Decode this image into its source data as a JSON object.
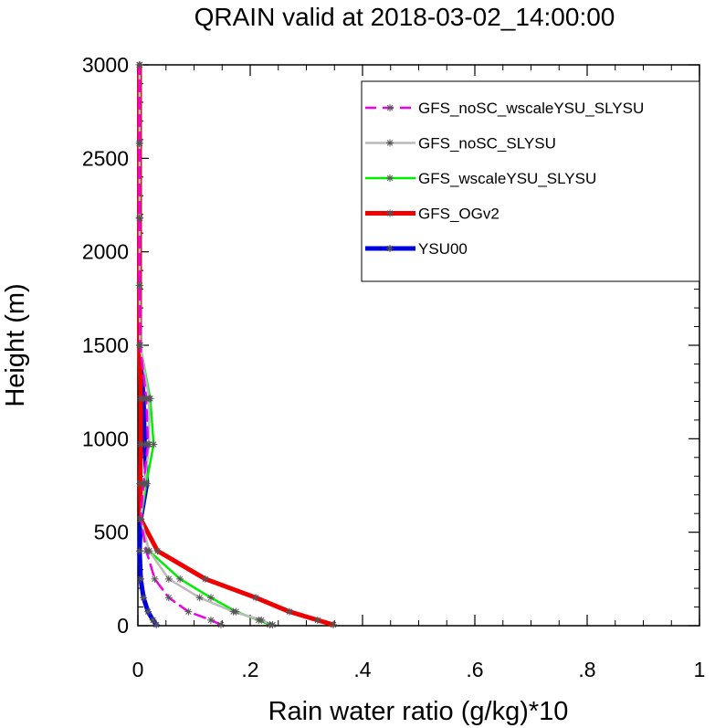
{
  "chart_data": {
    "type": "line",
    "title": "QRAIN valid at 2018-03-02_14:00:00",
    "xlabel": "Rain water ratio (g/kg)*10",
    "ylabel": "Height (m)",
    "xlim": [
      0,
      1
    ],
    "ylim": [
      0,
      3000
    ],
    "x_ticks": [
      0,
      0.2,
      0.4,
      0.6,
      0.8,
      1
    ],
    "x_tick_labels": [
      "0",
      ".2",
      ".4",
      ".6",
      ".8",
      "1"
    ],
    "y_ticks": [
      0,
      500,
      1000,
      1500,
      2000,
      2500,
      3000
    ],
    "y_tick_labels": [
      "0",
      "500",
      "1000",
      "1500",
      "2000",
      "2500",
      "3000"
    ],
    "legend_position": "top-right",
    "grid": false,
    "series": [
      {
        "name": "GFS_noSC_wscaleYSU_SLYSU",
        "color": "#ee00ee",
        "style": "dashed",
        "points": [
          [
            0.148,
            5
          ],
          [
            0.13,
            30
          ],
          [
            0.09,
            75
          ],
          [
            0.055,
            150
          ],
          [
            0.03,
            250
          ],
          [
            0.015,
            400
          ],
          [
            0.005,
            570
          ],
          [
            0.01,
            760
          ],
          [
            0.018,
            970
          ],
          [
            0.015,
            1215
          ],
          [
            0.004,
            1500
          ],
          [
            0.003,
            1820
          ],
          [
            0.003,
            2180
          ],
          [
            0.003,
            2580
          ],
          [
            0.003,
            3000
          ]
        ]
      },
      {
        "name": "GFS_noSC_SLYSU",
        "color": "#bbbbbb",
        "style": "solid",
        "points": [
          [
            0.24,
            5
          ],
          [
            0.22,
            30
          ],
          [
            0.17,
            75
          ],
          [
            0.11,
            150
          ],
          [
            0.055,
            250
          ],
          [
            0.02,
            400
          ],
          [
            0.005,
            570
          ],
          [
            0.012,
            760
          ],
          [
            0.02,
            970
          ],
          [
            0.02,
            1215
          ],
          [
            0.004,
            1500
          ],
          [
            0.003,
            1820
          ],
          [
            0.003,
            2180
          ],
          [
            0.003,
            2580
          ],
          [
            0.003,
            3000
          ]
        ]
      },
      {
        "name": "GFS_wscaleYSU_SLYSU",
        "color": "#00ee00",
        "style": "solid",
        "points": [
          [
            0.235,
            5
          ],
          [
            0.215,
            30
          ],
          [
            0.175,
            75
          ],
          [
            0.13,
            150
          ],
          [
            0.075,
            250
          ],
          [
            0.02,
            400
          ],
          [
            0.005,
            570
          ],
          [
            0.015,
            760
          ],
          [
            0.028,
            970
          ],
          [
            0.022,
            1215
          ],
          [
            0.004,
            1500
          ],
          [
            0.003,
            1820
          ],
          [
            0.003,
            2180
          ],
          [
            0.003,
            2580
          ],
          [
            0.003,
            3000
          ]
        ]
      },
      {
        "name": "GFS_OGv2",
        "color": "#ee0000",
        "style": "solid",
        "points": [
          [
            0.348,
            5
          ],
          [
            0.32,
            30
          ],
          [
            0.27,
            75
          ],
          [
            0.21,
            150
          ],
          [
            0.12,
            250
          ],
          [
            0.035,
            400
          ],
          [
            0.005,
            570
          ],
          [
            0.004,
            760
          ],
          [
            0.005,
            970
          ],
          [
            0.005,
            1215
          ],
          [
            0.003,
            1500
          ],
          [
            0.003,
            1820
          ],
          [
            0.003,
            2180
          ],
          [
            0.003,
            2580
          ],
          [
            0.003,
            3000
          ]
        ]
      },
      {
        "name": "YSU00",
        "color": "#0000dd",
        "style": "solid",
        "points": [
          [
            0.033,
            5
          ],
          [
            0.027,
            30
          ],
          [
            0.018,
            75
          ],
          [
            0.01,
            150
          ],
          [
            0.005,
            250
          ],
          [
            0.003,
            400
          ],
          [
            0.005,
            570
          ],
          [
            0.016,
            760
          ],
          [
            0.012,
            970
          ],
          [
            0.01,
            1215
          ],
          [
            0.003,
            1500
          ],
          [
            0.003,
            1820
          ],
          [
            0.003,
            2180
          ],
          [
            0.003,
            2580
          ],
          [
            0.003,
            3000
          ]
        ]
      }
    ]
  }
}
